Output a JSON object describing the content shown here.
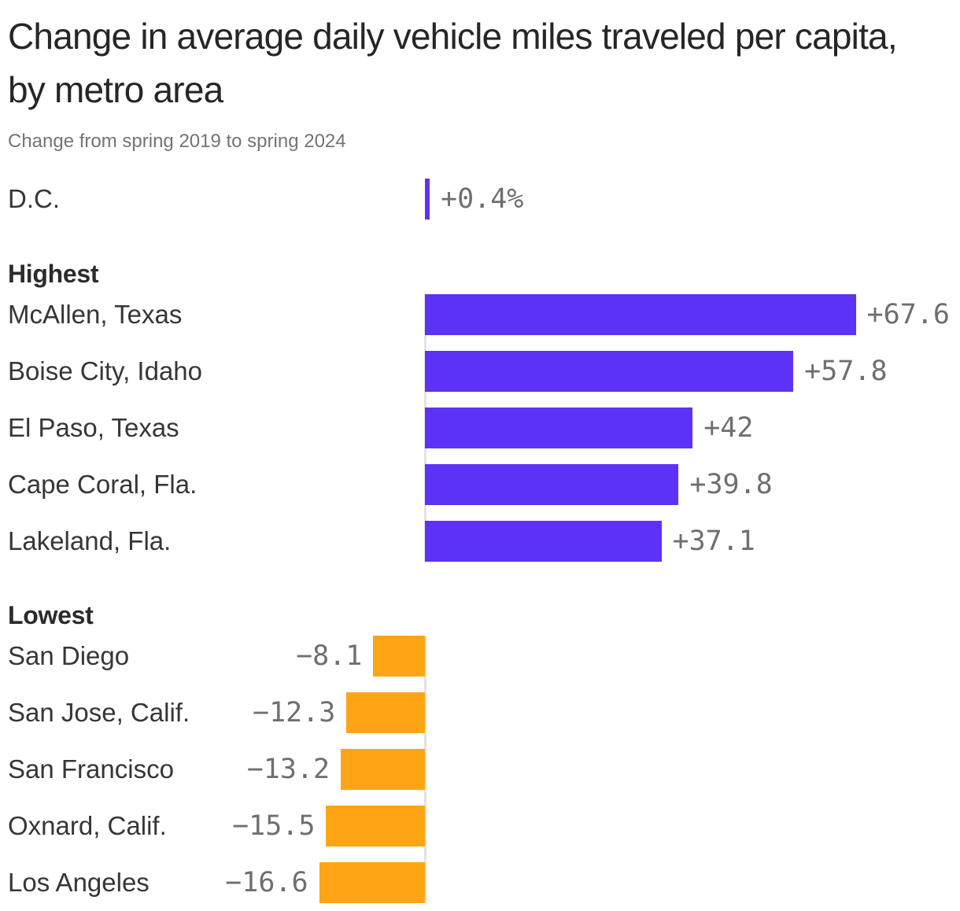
{
  "page": {
    "background": "#ffffff"
  },
  "header": {
    "title": "Change in average daily vehicle miles traveled per capita, by metro area",
    "subtitle": "Change from spring 2019 to spring 2024"
  },
  "chart_data": {
    "type": "bar",
    "orientation": "horizontal",
    "value_unit": "percent",
    "xlim": [
      -20,
      70
    ],
    "grid": false,
    "positive_color": "#5C33F6",
    "negative_color": "#FFA515",
    "axis_line_color": "#E3E3E3",
    "value_label_color": "#6F6F6F",
    "category_label_color": "#363636",
    "sections": [
      {
        "header": "",
        "rows": [
          {
            "label": "D.C.",
            "value": 0.4,
            "value_label": "+0.4%"
          }
        ]
      },
      {
        "header": "Highest",
        "rows": [
          {
            "label": "McAllen, Texas",
            "value": 67.6,
            "value_label": "+67.6"
          },
          {
            "label": "Boise City, Idaho",
            "value": 57.8,
            "value_label": "+57.8"
          },
          {
            "label": "El Paso, Texas",
            "value": 42,
            "value_label": "+42"
          },
          {
            "label": "Cape Coral, Fla.",
            "value": 39.8,
            "value_label": "+39.8"
          },
          {
            "label": "Lakeland, Fla.",
            "value": 37.1,
            "value_label": "+37.1"
          }
        ]
      },
      {
        "header": "Lowest",
        "rows": [
          {
            "label": "San Diego",
            "value": -8.1,
            "value_label": "−8.1"
          },
          {
            "label": "San Jose, Calif.",
            "value": -12.3,
            "value_label": "−12.3"
          },
          {
            "label": "San Francisco",
            "value": -13.2,
            "value_label": "−13.2"
          },
          {
            "label": "Oxnard, Calif.",
            "value": -15.5,
            "value_label": "−15.5"
          },
          {
            "label": "Los Angeles",
            "value": -16.6,
            "value_label": "−16.6"
          }
        ]
      }
    ]
  }
}
